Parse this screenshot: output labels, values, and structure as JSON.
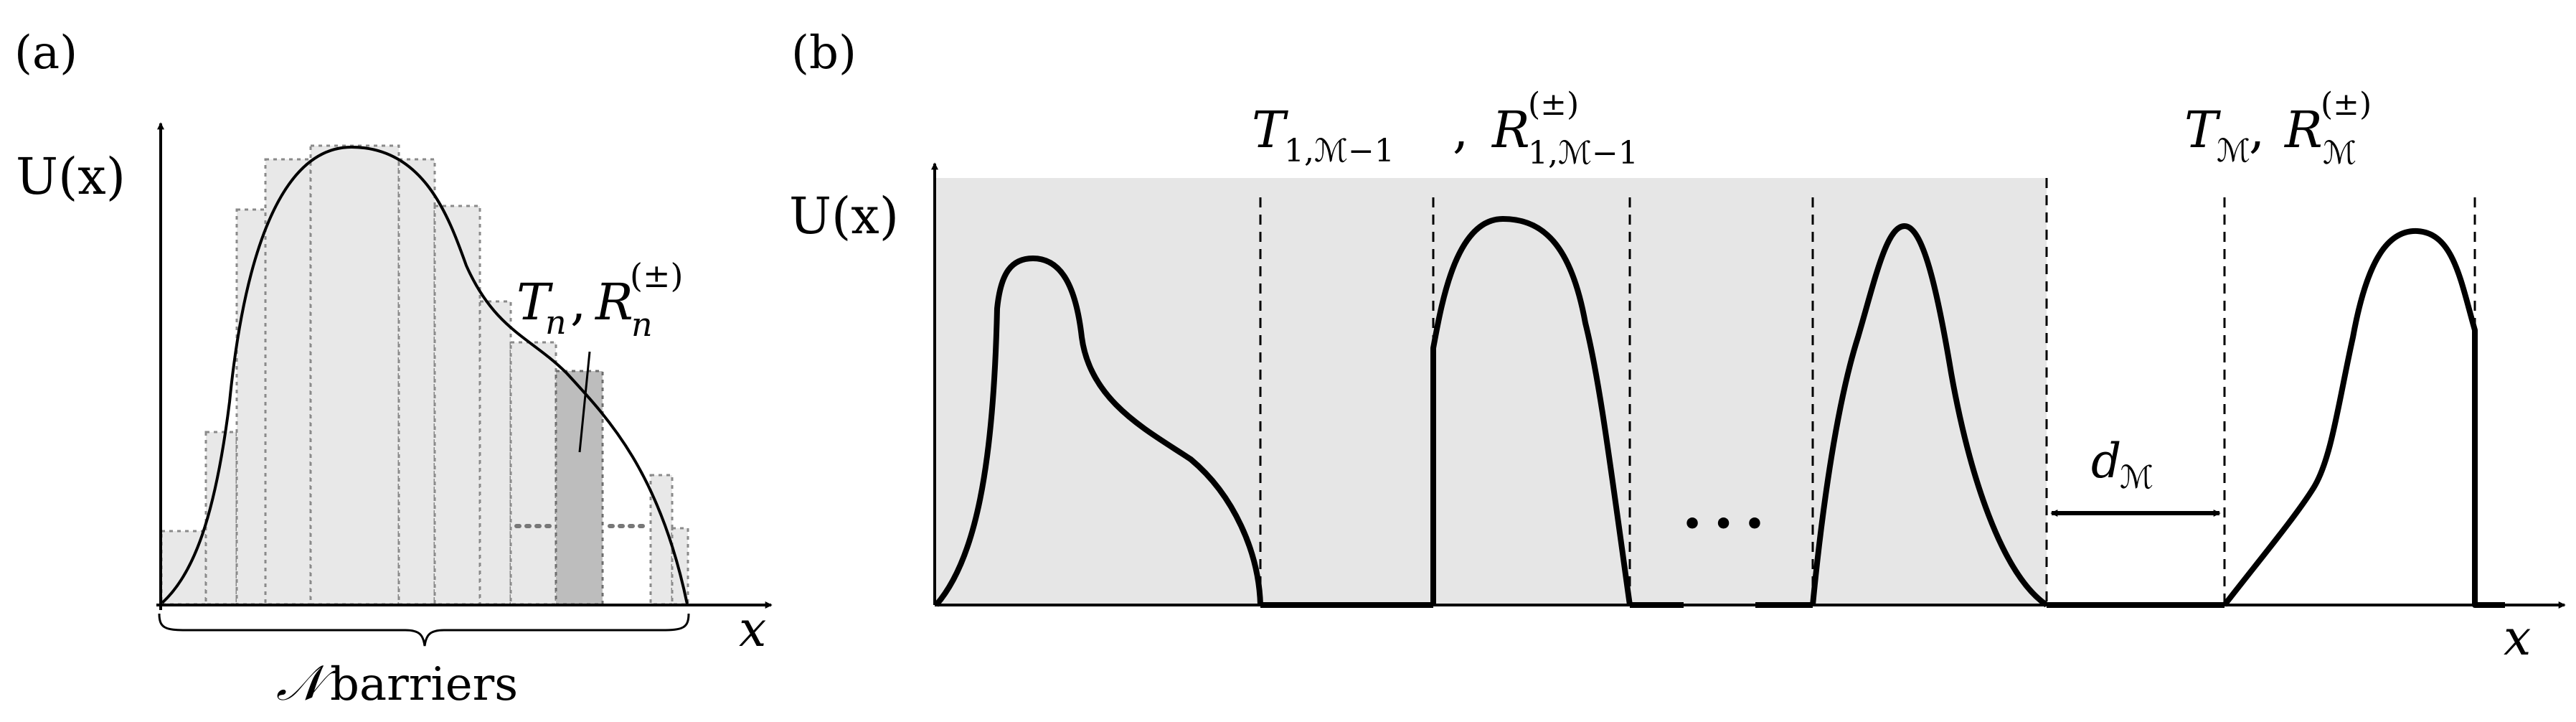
{
  "panel_a": {
    "label": "(a)",
    "y_axis_label": "U(x)",
    "x_axis_label": "x",
    "annotation_T": "T",
    "annotation_T_sub": "n",
    "annotation_R": "R",
    "annotation_R_sup": "(±)",
    "annotation_R_sub": "n",
    "brace_symbol": "𝒩",
    "brace_text": "barriers"
  },
  "panel_b": {
    "label": "(b)",
    "y_axis_label": "U(x)",
    "x_axis_label": "x",
    "left_T": "T",
    "left_T_sub": "1,ℳ−1",
    "left_R": "R",
    "left_R_sup": "(±)",
    "left_R_sub": "1,ℳ−1",
    "right_T": "T",
    "right_T_sub": "ℳ",
    "right_R": "R",
    "right_R_sup": "(±)",
    "right_R_sub": "ℳ",
    "gap_label": "d",
    "gap_label_sub": "ℳ",
    "ellipsis": "• • •"
  },
  "colors": {
    "ink": "#000000",
    "shade_light": "#e6e6e6",
    "shade_dark": "#bdbdbd",
    "rect_stroke": "#8a8a8a"
  }
}
